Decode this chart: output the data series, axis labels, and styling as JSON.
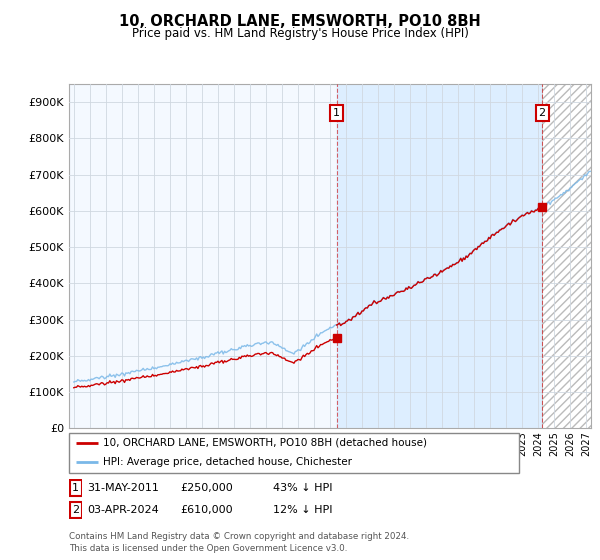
{
  "title": "10, ORCHARD LANE, EMSWORTH, PO10 8BH",
  "subtitle": "Price paid vs. HM Land Registry's House Price Index (HPI)",
  "hpi_label": "HPI: Average price, detached house, Chichester",
  "property_label": "10, ORCHARD LANE, EMSWORTH, PO10 8BH (detached house)",
  "annotation1_date": "31-MAY-2011",
  "annotation1_price": 250000,
  "annotation1_text": "43% ↓ HPI",
  "annotation2_date": "03-APR-2024",
  "annotation2_price": 610000,
  "annotation2_text": "12% ↓ HPI",
  "footer": "Contains HM Land Registry data © Crown copyright and database right 2024.\nThis data is licensed under the Open Government Licence v3.0.",
  "hpi_color": "#7ab8e8",
  "property_color": "#cc0000",
  "annotation_box_color": "#cc0000",
  "background_color": "#ffffff",
  "grid_color": "#d0d8e0",
  "fill_color": "#ddeeff",
  "hatch_color": "#cccccc",
  "ylim": [
    0,
    950000
  ],
  "yticks": [
    0,
    100000,
    200000,
    300000,
    400000,
    500000,
    600000,
    700000,
    800000,
    900000
  ],
  "ann1_x": 2011.42,
  "ann1_y": 250000,
  "ann2_x": 2024.25,
  "ann2_y": 610000,
  "hatch_start": 2024.25,
  "fill_start": 2011.42,
  "xlim_left": 1994.7,
  "xlim_right": 2027.3
}
